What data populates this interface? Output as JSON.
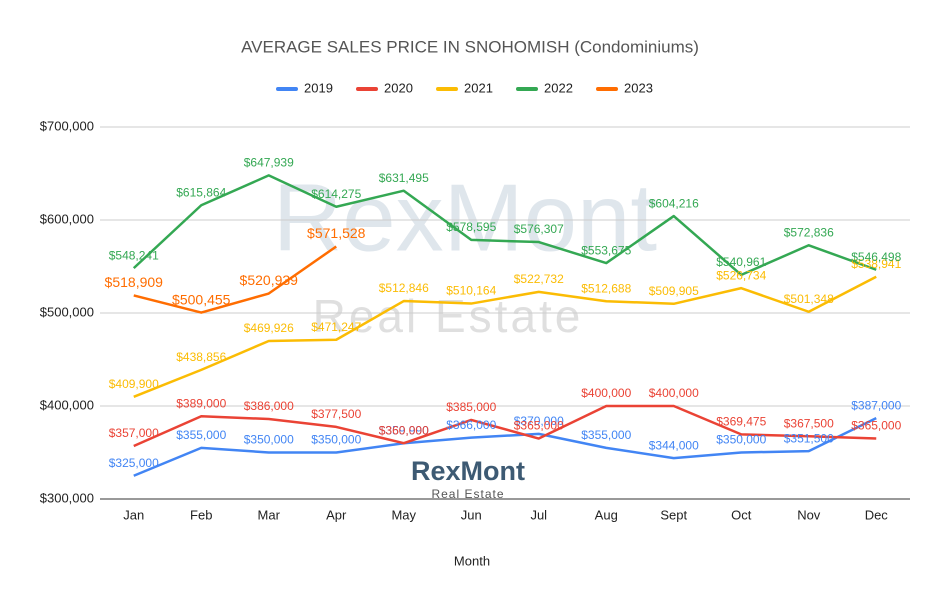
{
  "chart_data": {
    "type": "line",
    "title": "AVERAGE SALES PRICE IN SNOHOMISH (Condominiums)",
    "x_label": "Month",
    "watermark": {
      "title": "RexMont",
      "subtitle": "Real Estate"
    },
    "categories": [
      "Jan",
      "Feb",
      "Mar",
      "Apr",
      "May",
      "Jun",
      "Jul",
      "Aug",
      "Sept",
      "Oct",
      "Nov",
      "Dec"
    ],
    "series": [
      {
        "name": "2019",
        "color": "#4285f4",
        "values": [
          325000,
          355000,
          350000,
          350000,
          359990,
          366000,
          370000,
          355000,
          344000,
          350000,
          351500,
          387000
        ],
        "value_labels": [
          "$325,000",
          "$355,000",
          "$350,000",
          "$350,000",
          "$359,990",
          "$366,000",
          "$370,000",
          "$355,000",
          "$344,000",
          "$350,000",
          "$351,500",
          "$387,000"
        ]
      },
      {
        "name": "2020",
        "color": "#ea4335",
        "values": [
          357000,
          389000,
          386000,
          377500,
          360000,
          385000,
          365000,
          400000,
          400000,
          369475,
          367500,
          365000
        ],
        "value_labels": [
          "$357,000",
          "$389,000",
          "$386,000",
          "$377,500",
          "$360,000",
          "$385,000",
          "$365,000",
          "$400,000",
          "$400,000",
          "$369,475",
          "$367,500",
          "$365,000"
        ]
      },
      {
        "name": "2021",
        "color": "#fbbc04",
        "values": [
          409900,
          438856,
          469926,
          471247,
          512846,
          510164,
          522732,
          512688,
          509905,
          526734,
          501348,
          538941
        ],
        "value_labels": [
          "$409,900",
          "$438,856",
          "$469,926",
          "$471,247",
          "$512,846",
          "$510,164",
          "$522,732",
          "$512,688",
          "$509,905",
          "$526,734",
          "$501,348",
          "$538,941"
        ]
      },
      {
        "name": "2022",
        "color": "#34a853",
        "values": [
          548241,
          615864,
          647939,
          614275,
          631495,
          578595,
          576307,
          553675,
          604216,
          540961,
          572836,
          546498
        ],
        "value_labels": [
          "$548,241",
          "$615,864",
          "$647,939",
          "$614,275",
          "$631,495",
          "$578,595",
          "$576,307",
          "$553,675",
          "$604,216",
          "$540,961",
          "$572,836",
          "$546,498"
        ]
      },
      {
        "name": "2023",
        "color": "#ff6d01",
        "values": [
          518909,
          500455,
          520939,
          571528,
          null,
          null,
          null,
          null,
          null,
          null,
          null,
          null
        ],
        "value_labels": [
          "$518,909",
          "$500,455",
          "$520,939",
          "$571,528",
          null,
          null,
          null,
          null,
          null,
          null,
          null,
          null
        ]
      }
    ],
    "ylim": [
      300000,
      700000
    ],
    "yticks": [
      {
        "value": 300000,
        "label": "$300,000"
      },
      {
        "value": 400000,
        "label": "$400,000"
      },
      {
        "value": 500000,
        "label": "$500,000"
      },
      {
        "value": 600000,
        "label": "$600,000"
      },
      {
        "value": 700000,
        "label": "$700,000"
      }
    ],
    "grid": true,
    "legend": "top"
  }
}
